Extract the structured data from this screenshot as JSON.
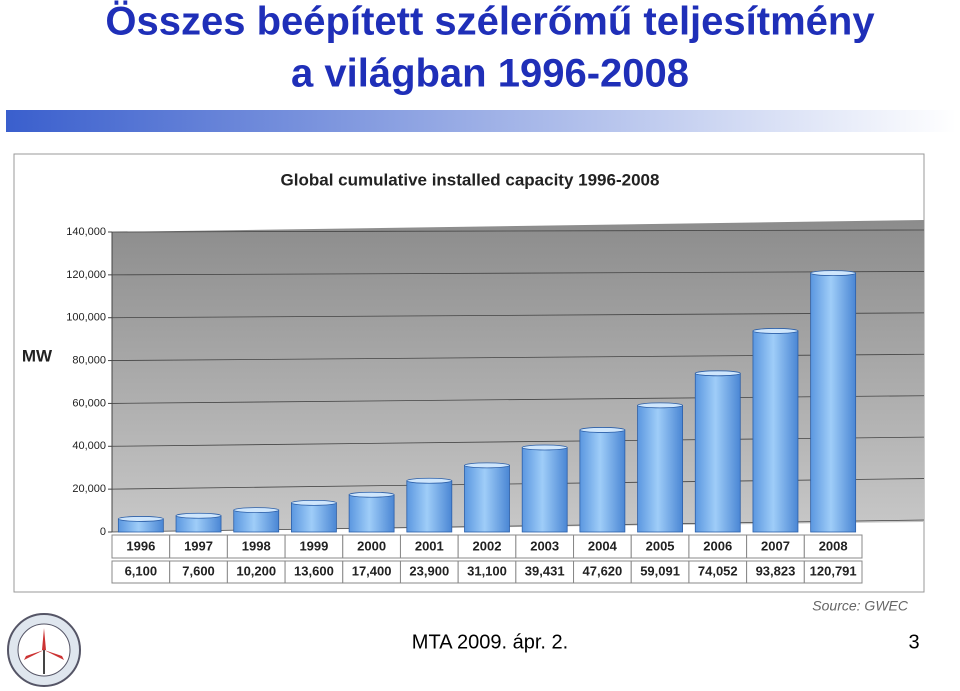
{
  "slide": {
    "title_lines": [
      "Összes beépített szélerőmű teljesítmény",
      "a világban 1996-2008"
    ],
    "footer": "MTA 2009. ápr. 2.",
    "page_number": "3"
  },
  "chart_data": {
    "type": "bar",
    "title": "Global cumulative installed capacity 1996-2008",
    "y_label": "MW",
    "source": "Source: GWEC",
    "categories": [
      "1996",
      "1997",
      "1998",
      "1999",
      "2000",
      "2001",
      "2002",
      "2003",
      "2004",
      "2005",
      "2006",
      "2007",
      "2008"
    ],
    "values": [
      6100,
      7600,
      10200,
      13600,
      17400,
      23900,
      31100,
      39431,
      47620,
      59091,
      74052,
      93823,
      120791
    ],
    "value_labels": [
      "6,100",
      "7,600",
      "10,200",
      "13,600",
      "17,400",
      "23,900",
      "31,100",
      "39,431",
      "47,620",
      "59,091",
      "74,052",
      "93,823",
      "120,791"
    ],
    "color": "#7fb7f2",
    "ylim": [
      0,
      140000
    ],
    "yticks": [
      0,
      {
        "value": 20000,
        "label": "20,000"
      },
      {
        "value": 40000,
        "label": "40,000"
      },
      {
        "value": 60000,
        "label": "60,000"
      },
      {
        "value": 80000,
        "label": "80,000"
      },
      {
        "value": 100000,
        "label": "100,000"
      },
      {
        "value": 120000,
        "label": "120,000"
      },
      {
        "value": 140000,
        "label": "140,000"
      }
    ],
    "grid": true
  }
}
